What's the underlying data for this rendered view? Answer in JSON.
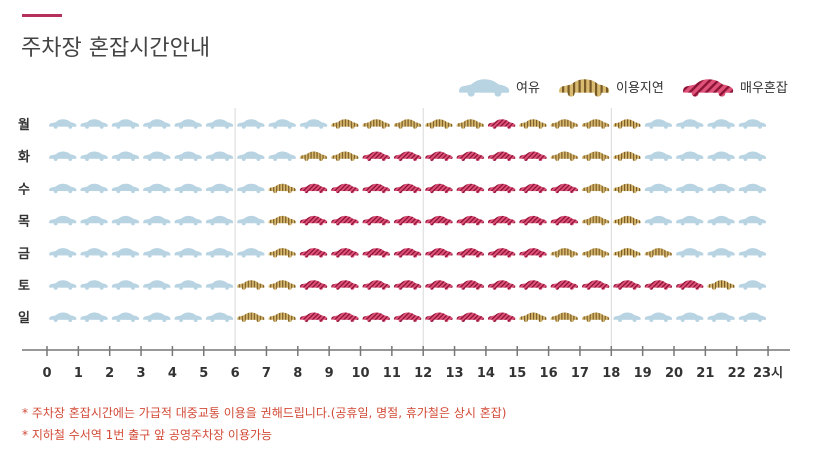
{
  "page": {
    "title": "주차장 혼잡시간안내",
    "accent_color": "#b5315c"
  },
  "legend": [
    {
      "label": "여유",
      "status": "free"
    },
    {
      "label": "이용지연",
      "status": "delayed"
    },
    {
      "label": "매우혼잡",
      "status": "congested"
    }
  ],
  "colors": {
    "free": "#b8d3e2",
    "delayed_base": "#d8ba70",
    "delayed_stripe": "#7a5a26",
    "congested_base": "#e0527a",
    "congested_stripe": "#8c1436",
    "grid": "#d9d9d9",
    "axis": "#777777",
    "note": "#d24a36"
  },
  "chart_data": {
    "type": "heatmap",
    "status_codes": {
      "0": "여유",
      "1": "이용지연",
      "2": "매우혼잡"
    },
    "days": [
      "월",
      "화",
      "수",
      "목",
      "금",
      "토",
      "일"
    ],
    "hours": [
      0,
      1,
      2,
      3,
      4,
      5,
      6,
      7,
      8,
      9,
      10,
      11,
      12,
      13,
      14,
      15,
      16,
      17,
      18,
      19,
      20,
      21,
      22,
      23
    ],
    "x_tick_labels": [
      "0",
      "1",
      "2",
      "3",
      "4",
      "5",
      "6",
      "7",
      "8",
      "9",
      "10",
      "11",
      "12",
      "13",
      "14",
      "15",
      "16",
      "17",
      "18",
      "19",
      "20",
      "21",
      "22",
      "23시"
    ],
    "xlim": [
      0,
      23
    ],
    "values": [
      [
        0,
        0,
        0,
        0,
        0,
        0,
        0,
        0,
        0,
        1,
        1,
        1,
        1,
        1,
        2,
        1,
        1,
        1,
        1,
        0,
        0,
        0,
        0
      ],
      [
        0,
        0,
        0,
        0,
        0,
        0,
        0,
        0,
        1,
        1,
        2,
        2,
        2,
        2,
        2,
        2,
        1,
        1,
        1,
        0,
        0,
        0,
        0
      ],
      [
        0,
        0,
        0,
        0,
        0,
        0,
        0,
        1,
        2,
        2,
        2,
        2,
        2,
        2,
        2,
        2,
        2,
        1,
        1,
        0,
        0,
        0,
        0
      ],
      [
        0,
        0,
        0,
        0,
        0,
        0,
        0,
        1,
        2,
        2,
        2,
        2,
        2,
        2,
        2,
        2,
        2,
        1,
        1,
        0,
        0,
        0,
        0
      ],
      [
        0,
        0,
        0,
        0,
        0,
        0,
        0,
        1,
        2,
        2,
        2,
        2,
        2,
        2,
        2,
        2,
        1,
        1,
        1,
        1,
        0,
        0,
        0
      ],
      [
        0,
        0,
        0,
        0,
        0,
        0,
        1,
        1,
        2,
        2,
        2,
        2,
        2,
        2,
        2,
        2,
        2,
        2,
        2,
        2,
        2,
        1,
        0
      ],
      [
        0,
        0,
        0,
        0,
        0,
        0,
        1,
        1,
        2,
        2,
        2,
        2,
        2,
        2,
        2,
        1,
        1,
        1,
        0,
        0,
        0,
        0,
        0
      ]
    ]
  },
  "notes": [
    "* 주차장 혼잡시간에는 가급적 대중교통 이용을 권해드립니다.(공휴일, 명절, 휴가철은 상시 혼잡)",
    "* 지하철 수서역 1번 출구 앞 공영주차장 이용가능"
  ]
}
